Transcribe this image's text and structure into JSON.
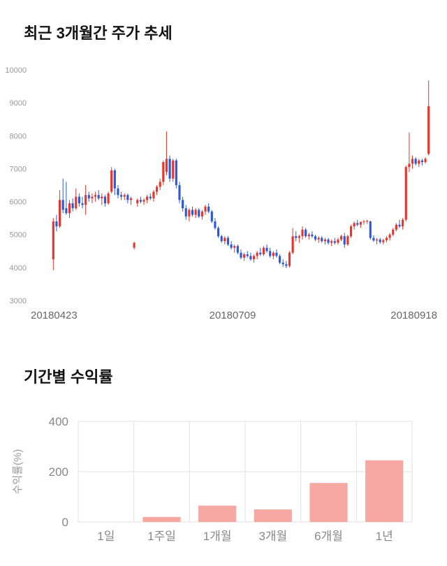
{
  "titles": {
    "price_chart": "최근 3개월간 주가 추세",
    "returns_chart": "기간별 수익률"
  },
  "colors": {
    "candle_up": "#e7342c",
    "candle_down": "#2b59d8",
    "bar_fill": "#f7a8a2",
    "grid": "#e2e2e2",
    "axis_text": "#999999",
    "x_tick_text": "#666666",
    "title_text": "#111111"
  },
  "chart_data": [
    {
      "type": "candlestick",
      "title": "최근 3개월간 주가 추세",
      "ylim": [
        3000,
        10000
      ],
      "y_ticks": [
        3000,
        4000,
        5000,
        6000,
        7000,
        8000,
        9000,
        10000
      ],
      "x_tick_labels": [
        "20180423",
        "20180709",
        "20180918"
      ],
      "up_color": "#e7342c",
      "down_color": "#2b59d8",
      "grid": false,
      "candles": [
        [
          4250,
          5500,
          3920,
          5400
        ],
        [
          5400,
          5600,
          5100,
          5250
        ],
        [
          5250,
          6350,
          5200,
          6050
        ],
        [
          6050,
          6700,
          5650,
          5750
        ],
        [
          5800,
          6600,
          5600,
          5650
        ],
        [
          5650,
          6050,
          5500,
          5950
        ],
        [
          5950,
          6100,
          5700,
          5800
        ],
        [
          5800,
          6400,
          5750,
          6150
        ],
        [
          6150,
          6250,
          5850,
          5950
        ],
        [
          5950,
          6150,
          5800,
          5900
        ],
        [
          5900,
          6500,
          5600,
          6200
        ],
        [
          6200,
          6300,
          6000,
          6100
        ],
        [
          6100,
          6250,
          5950,
          6150
        ],
        [
          6150,
          6300,
          6000,
          6200
        ],
        [
          6200,
          6350,
          6050,
          6100
        ],
        [
          6100,
          6250,
          5900,
          6150
        ],
        [
          6150,
          6200,
          5850,
          5950
        ],
        [
          5950,
          6300,
          5900,
          6250
        ],
        [
          6300,
          7050,
          6250,
          6950
        ],
        [
          6950,
          7000,
          6200,
          6400
        ],
        [
          6400,
          6500,
          6100,
          6200
        ],
        [
          6200,
          6300,
          6050,
          6150
        ],
        [
          6150,
          6250,
          6050,
          6200
        ],
        [
          6200,
          6250,
          5950,
          6050
        ],
        [
          6050,
          6150,
          5900,
          6100
        ],
        [
          4600,
          4780,
          4550,
          4750
        ],
        [
          5950,
          6100,
          5850,
          6050
        ],
        [
          6050,
          6150,
          5950,
          6000
        ],
        [
          6000,
          6100,
          5900,
          6050
        ],
        [
          6050,
          6200,
          5950,
          6150
        ],
        [
          6150,
          6250,
          6050,
          6100
        ],
        [
          6100,
          6350,
          6000,
          6300
        ],
        [
          6300,
          6500,
          6200,
          6450
        ],
        [
          6450,
          6700,
          6350,
          6600
        ],
        [
          6600,
          7250,
          6500,
          7200
        ],
        [
          6900,
          8130,
          6800,
          7300
        ],
        [
          7300,
          7400,
          6600,
          6700
        ],
        [
          6700,
          7300,
          6600,
          7250
        ],
        [
          7250,
          7300,
          6400,
          6500
        ],
        [
          6500,
          6600,
          5950,
          6050
        ],
        [
          6050,
          6150,
          5700,
          5800
        ],
        [
          5800,
          5900,
          5450,
          5550
        ],
        [
          5550,
          5800,
          5400,
          5750
        ],
        [
          5750,
          5850,
          5550,
          5600
        ],
        [
          5600,
          5800,
          5500,
          5750
        ],
        [
          5750,
          5800,
          5500,
          5550
        ],
        [
          5550,
          5750,
          5450,
          5700
        ],
        [
          5700,
          5900,
          5600,
          5850
        ],
        [
          5850,
          5950,
          5650,
          5700
        ],
        [
          5700,
          5750,
          5350,
          5400
        ],
        [
          5400,
          5500,
          5150,
          5200
        ],
        [
          5200,
          5250,
          4900,
          4950
        ],
        [
          4950,
          5000,
          4750,
          4800
        ],
        [
          4800,
          4950,
          4700,
          4900
        ],
        [
          4900,
          4950,
          4650,
          4700
        ],
        [
          4700,
          4800,
          4550,
          4600
        ],
        [
          4600,
          4700,
          4450,
          4650
        ],
        [
          4650,
          4700,
          4400,
          4450
        ],
        [
          4450,
          4550,
          4250,
          4300
        ],
        [
          4300,
          4450,
          4200,
          4400
        ],
        [
          4400,
          4500,
          4300,
          4350
        ],
        [
          4350,
          4450,
          4200,
          4250
        ],
        [
          4250,
          4400,
          4150,
          4350
        ],
        [
          4350,
          4500,
          4250,
          4450
        ],
        [
          4450,
          4600,
          4350,
          4400
        ],
        [
          4400,
          4650,
          4350,
          4600
        ],
        [
          4600,
          4700,
          4450,
          4500
        ],
        [
          4500,
          4600,
          4300,
          4350
        ],
        [
          4350,
          4500,
          4250,
          4450
        ],
        [
          4450,
          4550,
          4300,
          4350
        ],
        [
          4350,
          4400,
          4100,
          4150
        ],
        [
          4150,
          4250,
          4020,
          4100
        ],
        [
          4100,
          4200,
          3980,
          4050
        ],
        [
          4050,
          4500,
          4000,
          4450
        ],
        [
          4450,
          5200,
          4400,
          4950
        ],
        [
          4950,
          5100,
          4800,
          4900
        ],
        [
          4900,
          5000,
          4750,
          4950
        ],
        [
          4950,
          5250,
          4850,
          5150
        ],
        [
          5150,
          5200,
          4900,
          4950
        ],
        [
          4950,
          5050,
          4850,
          5000
        ],
        [
          5000,
          5100,
          4900,
          4950
        ],
        [
          4950,
          5000,
          4800,
          4850
        ],
        [
          4850,
          4950,
          4750,
          4900
        ],
        [
          4900,
          4950,
          4750,
          4800
        ],
        [
          4800,
          4900,
          4700,
          4850
        ],
        [
          4850,
          4900,
          4700,
          4750
        ],
        [
          4750,
          4850,
          4650,
          4800
        ],
        [
          4800,
          4900,
          4700,
          4750
        ],
        [
          4750,
          4900,
          4700,
          4850
        ],
        [
          4850,
          5000,
          4800,
          4950
        ],
        [
          4950,
          5050,
          4600,
          4700
        ],
        [
          4700,
          5000,
          4650,
          4950
        ],
        [
          4950,
          5300,
          4900,
          5250
        ],
        [
          5250,
          5400,
          5150,
          5350
        ],
        [
          5350,
          5450,
          5250,
          5300
        ],
        [
          5300,
          5400,
          5200,
          5380
        ],
        [
          5380,
          5450,
          5300,
          5400
        ],
        [
          5400,
          5450,
          5320,
          5420
        ],
        [
          5400,
          5420,
          4850,
          4900
        ],
        [
          4900,
          4980,
          4780,
          4820
        ],
        [
          4820,
          4900,
          4700,
          4850
        ],
        [
          4850,
          4900,
          4720,
          4770
        ],
        [
          4770,
          4870,
          4700,
          4830
        ],
        [
          4830,
          4950,
          4760,
          4900
        ],
        [
          4900,
          5050,
          4820,
          5000
        ],
        [
          5000,
          5200,
          4950,
          5150
        ],
        [
          5150,
          5350,
          5100,
          5300
        ],
        [
          5300,
          5450,
          5200,
          5250
        ],
        [
          5250,
          5500,
          5150,
          5450
        ],
        [
          5450,
          7100,
          5400,
          7050
        ],
        [
          7050,
          8100,
          6900,
          7150
        ],
        [
          7150,
          7400,
          7000,
          7300
        ],
        [
          7300,
          7350,
          7100,
          7150
        ],
        [
          7150,
          7300,
          7050,
          7250
        ],
        [
          7250,
          7300,
          7100,
          7200
        ],
        [
          7200,
          7350,
          7150,
          7300
        ],
        [
          7450,
          9680,
          7400,
          8900
        ]
      ]
    },
    {
      "type": "bar",
      "title": "기간별 수익률",
      "ylabel": "수익률(%)",
      "categories": [
        "1일",
        "1주일",
        "1개월",
        "3개월",
        "6개월",
        "1년"
      ],
      "values": [
        0,
        20,
        65,
        50,
        155,
        245
      ],
      "ylim": [
        0,
        400
      ],
      "y_ticks": [
        0,
        200,
        400
      ],
      "bar_color": "#f7a8a2",
      "grid": true,
      "legend_position": "none"
    }
  ]
}
